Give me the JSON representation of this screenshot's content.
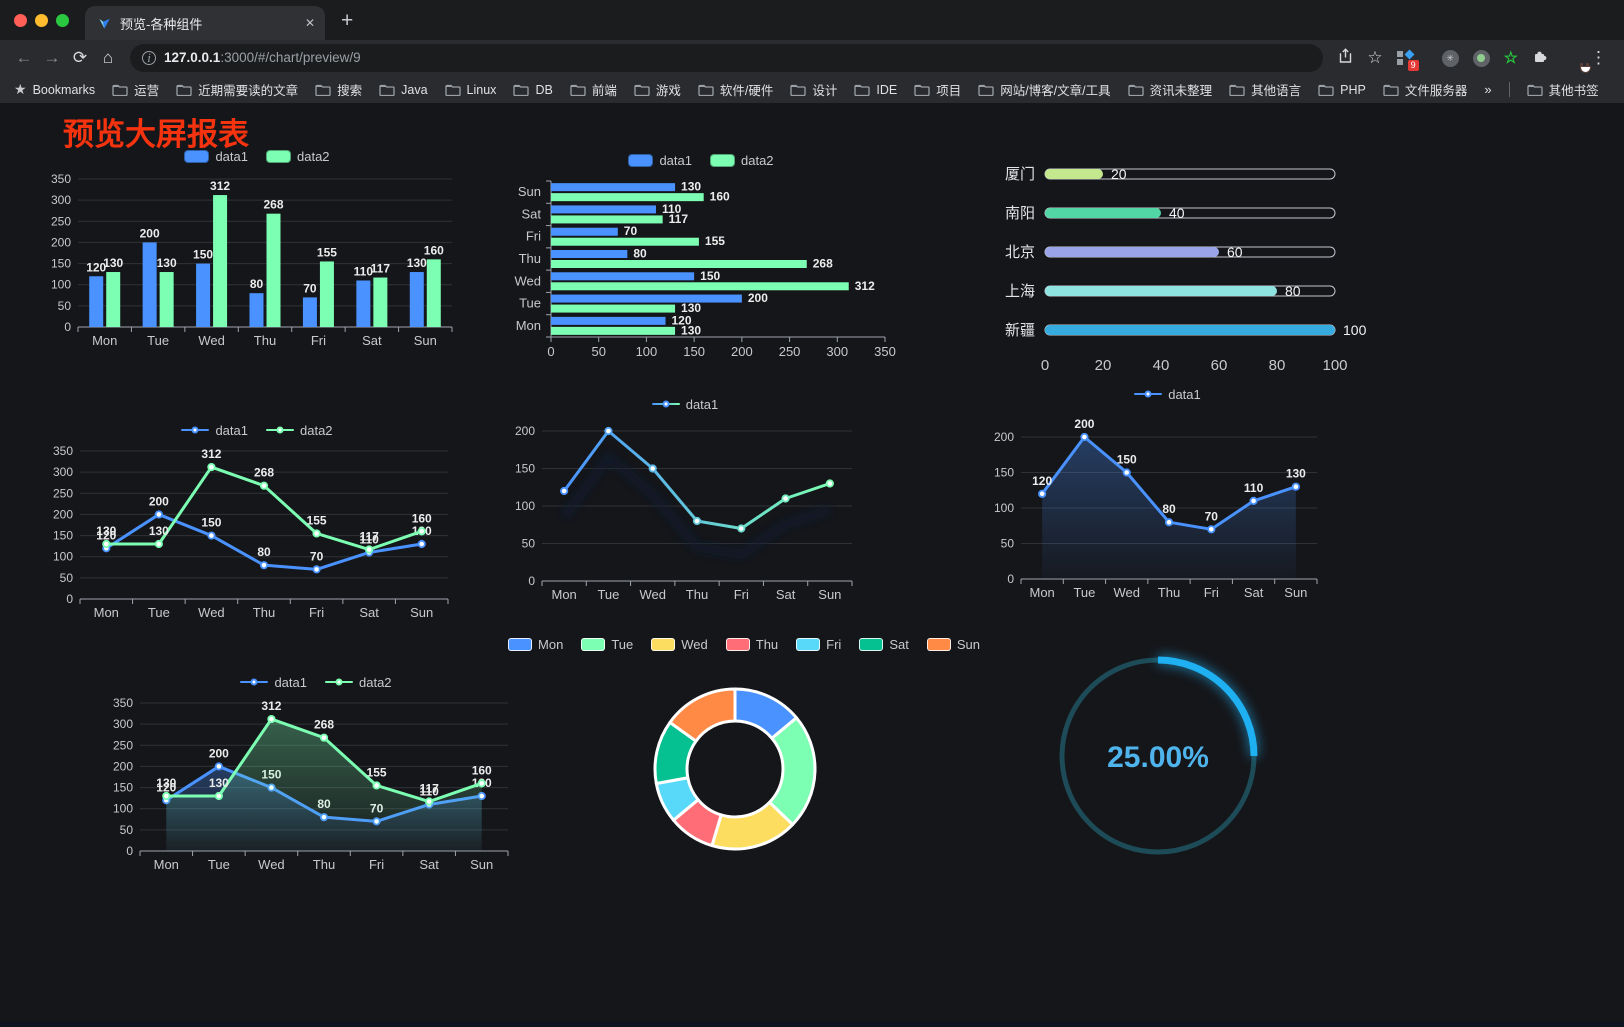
{
  "browser": {
    "tab_title": "预览-各种组件",
    "new_tab_button": "+",
    "url": {
      "host": "127.0.0.1",
      "rest": ":3000/#/chart/preview/9"
    },
    "extension_badge": "9",
    "bookmarks_bar": {
      "label": "Bookmarks",
      "folders": [
        "运营",
        "近期需要读的文章",
        "搜索",
        "Java",
        "Linux",
        "DB",
        "前端",
        "游戏",
        "软件/硬件",
        "设计",
        "IDE",
        "项目",
        "网站/博客/文章/工具",
        "资讯未整理",
        "其他语言",
        "PHP",
        "文件服务器"
      ],
      "overflow": "»",
      "other": "其他书签"
    }
  },
  "page": {
    "title": "预览大屏报表",
    "title_color": "#f5330f",
    "background": "#15161a"
  },
  "chart_data": [
    {
      "id": "bar-grouped",
      "type": "bar",
      "orientation": "vertical",
      "categories": [
        "Mon",
        "Tue",
        "Wed",
        "Thu",
        "Fri",
        "Sat",
        "Sun"
      ],
      "series": [
        {
          "name": "data1",
          "color": "#4992ff",
          "values": [
            120,
            200,
            150,
            80,
            70,
            110,
            130
          ]
        },
        {
          "name": "data2",
          "color": "#7cffb2",
          "values": [
            130,
            130,
            312,
            268,
            155,
            117,
            160
          ]
        }
      ],
      "ylim": [
        0,
        350
      ],
      "ytick": 50,
      "grid": true,
      "legend_position": "top",
      "point_labels": true
    },
    {
      "id": "bar-horizontal",
      "type": "bar",
      "orientation": "horizontal",
      "categories": [
        "Mon",
        "Tue",
        "Wed",
        "Thu",
        "Fri",
        "Sat",
        "Sun"
      ],
      "display_order_top_to_bottom": [
        "Sun",
        "Sat",
        "Fri",
        "Thu",
        "Wed",
        "Tue",
        "Mon"
      ],
      "series": [
        {
          "name": "data1",
          "color": "#4992ff",
          "values": [
            120,
            200,
            150,
            80,
            70,
            110,
            130
          ]
        },
        {
          "name": "data2",
          "color": "#7cffb2",
          "values": [
            130,
            130,
            312,
            268,
            155,
            117,
            160
          ]
        }
      ],
      "xlim": [
        0,
        350
      ],
      "xtick": 50,
      "grid": false,
      "legend_position": "top",
      "point_labels": true
    },
    {
      "id": "progress",
      "type": "bar",
      "orientation": "progress",
      "items": [
        {
          "label": "厦门",
          "value": 20,
          "color": "#c3e88d"
        },
        {
          "label": "南阳",
          "value": 40,
          "color": "#52d6a5"
        },
        {
          "label": "北京",
          "value": 60,
          "color": "#9ba3e8"
        },
        {
          "label": "上海",
          "value": 80,
          "color": "#8fe3e0"
        },
        {
          "label": "新疆",
          "value": 100,
          "color": "#35abe0"
        }
      ],
      "xlim": [
        0,
        100
      ],
      "xticks": [
        0,
        20,
        40,
        60,
        80,
        100
      ]
    },
    {
      "id": "line-dual",
      "type": "line",
      "categories": [
        "Mon",
        "Tue",
        "Wed",
        "Thu",
        "Fri",
        "Sat",
        "Sun"
      ],
      "series": [
        {
          "name": "data1",
          "color": "#4992ff",
          "values": [
            120,
            200,
            150,
            80,
            70,
            110,
            130
          ]
        },
        {
          "name": "data2",
          "color": "#7cffb2",
          "values": [
            130,
            130,
            312,
            268,
            155,
            117,
            160
          ]
        }
      ],
      "ylim": [
        0,
        350
      ],
      "ytick": 50,
      "grid": true,
      "legend_position": "top",
      "point_labels": true
    },
    {
      "id": "line-gradient",
      "type": "line",
      "categories": [
        "Mon",
        "Tue",
        "Wed",
        "Thu",
        "Fri",
        "Sat",
        "Sun"
      ],
      "series": [
        {
          "name": "data1",
          "color": "#4992ff",
          "color_end": "#7cffb2",
          "values": [
            120,
            200,
            150,
            80,
            70,
            110,
            130
          ]
        }
      ],
      "ylim": [
        0,
        200
      ],
      "ytick": 50,
      "grid": true,
      "legend_position": "top",
      "point_labels": false,
      "shadow": true
    },
    {
      "id": "line-area",
      "type": "area",
      "categories": [
        "Mon",
        "Tue",
        "Wed",
        "Thu",
        "Fri",
        "Sat",
        "Sun"
      ],
      "series": [
        {
          "name": "data1",
          "color": "#4992ff",
          "area": true,
          "values": [
            120,
            200,
            150,
            80,
            70,
            110,
            130
          ]
        }
      ],
      "ylim": [
        0,
        200
      ],
      "ytick": 50,
      "grid": true,
      "legend_position": "top",
      "point_labels": true
    },
    {
      "id": "area-dual",
      "type": "area",
      "categories": [
        "Mon",
        "Tue",
        "Wed",
        "Thu",
        "Fri",
        "Sat",
        "Sun"
      ],
      "series": [
        {
          "name": "data1",
          "color": "#4992ff",
          "area": true,
          "values": [
            120,
            200,
            150,
            80,
            70,
            110,
            130
          ]
        },
        {
          "name": "data2",
          "color": "#7cffb2",
          "area": true,
          "values": [
            130,
            130,
            312,
            268,
            155,
            117,
            160
          ]
        }
      ],
      "ylim": [
        0,
        350
      ],
      "ytick": 50,
      "grid": true,
      "legend_position": "top",
      "point_labels": true
    },
    {
      "id": "donut",
      "type": "pie",
      "inner_radius_ratio": 0.6,
      "legend_position": "top",
      "items": [
        {
          "label": "Mon",
          "value": 120,
          "color": "#4992ff"
        },
        {
          "label": "Tue",
          "value": 200,
          "color": "#7cffb2"
        },
        {
          "label": "Wed",
          "value": 150,
          "color": "#fddd60"
        },
        {
          "label": "Thu",
          "value": 80,
          "color": "#ff6e76"
        },
        {
          "label": "Fri",
          "value": 70,
          "color": "#58d9f9"
        },
        {
          "label": "Sat",
          "value": 110,
          "color": "#05c091"
        },
        {
          "label": "Sun",
          "value": 130,
          "color": "#ff8a45"
        }
      ]
    },
    {
      "id": "gauge",
      "type": "gauge",
      "percent": 25,
      "label": "25.00%",
      "color": "#1fb0f2",
      "track_color": "#1d4b57",
      "text_color": "#4fb3ec"
    }
  ]
}
